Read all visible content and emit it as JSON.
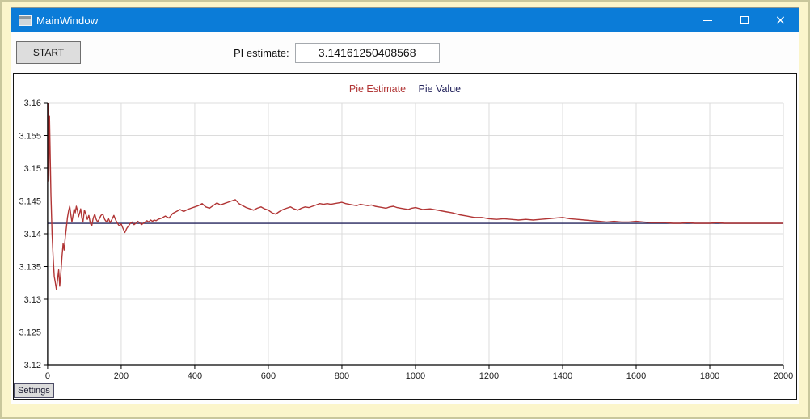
{
  "window": {
    "title": "MainWindow",
    "icons": {
      "app": "window-icon",
      "minimize": "–",
      "maximize": "□",
      "close": "×"
    }
  },
  "toolbar": {
    "start_label": "START",
    "pi_label": "PI estimate:",
    "pi_value": "3.14161250408568"
  },
  "settings_tab": {
    "label": "Settings"
  },
  "colors": {
    "titlebar": "#0b7cd8",
    "page_background": "#fbf5cb",
    "chart_border": "#141414",
    "gridline": "#dcdcdc",
    "axis": "#000000",
    "estimate_series": "#b13535",
    "value_series": "#23235c"
  },
  "chart_data": {
    "type": "line",
    "title": "",
    "legend_position": "top-center",
    "grid": true,
    "xlim": [
      0,
      2000
    ],
    "ylim": [
      3.12,
      3.16
    ],
    "x_ticks": [
      0,
      200,
      400,
      600,
      800,
      1000,
      1200,
      1400,
      1600,
      1800,
      2000
    ],
    "x_tick_labels": [
      "0",
      "200",
      "400",
      "600",
      "800",
      "1000",
      "1200",
      "1400",
      "1600",
      "1800",
      "2000"
    ],
    "y_ticks": [
      3.12,
      3.125,
      3.13,
      3.135,
      3.14,
      3.145,
      3.15,
      3.155,
      3.16
    ],
    "y_tick_labels": [
      "3.12",
      "3.125",
      "3.13",
      "3.135",
      "3.14",
      "3.145",
      "3.15",
      "3.155",
      "3.16"
    ],
    "series": [
      {
        "name": "Pie Estimate",
        "color": "#b13535",
        "points": [
          [
            1,
            3.16
          ],
          [
            3,
            3.148
          ],
          [
            5,
            3.158
          ],
          [
            7,
            3.152
          ],
          [
            9,
            3.146
          ],
          [
            12,
            3.14
          ],
          [
            15,
            3.1365
          ],
          [
            18,
            3.1335
          ],
          [
            21,
            3.1325
          ],
          [
            24,
            3.1315
          ],
          [
            27,
            3.133
          ],
          [
            30,
            3.1345
          ],
          [
            33,
            3.132
          ],
          [
            36,
            3.134
          ],
          [
            39,
            3.1365
          ],
          [
            42,
            3.1385
          ],
          [
            45,
            3.1375
          ],
          [
            48,
            3.1395
          ],
          [
            51,
            3.141
          ],
          [
            54,
            3.1425
          ],
          [
            57,
            3.1435
          ],
          [
            60,
            3.1442
          ],
          [
            63,
            3.143
          ],
          [
            66,
            3.1418
          ],
          [
            69,
            3.1428
          ],
          [
            72,
            3.1438
          ],
          [
            75,
            3.1432
          ],
          [
            78,
            3.1442
          ],
          [
            81,
            3.1436
          ],
          [
            84,
            3.1426
          ],
          [
            87,
            3.1432
          ],
          [
            90,
            3.1438
          ],
          [
            93,
            3.1424
          ],
          [
            96,
            3.1418
          ],
          [
            100,
            3.1436
          ],
          [
            104,
            3.143
          ],
          [
            108,
            3.1422
          ],
          [
            112,
            3.1428
          ],
          [
            116,
            3.1416
          ],
          [
            120,
            3.1412
          ],
          [
            124,
            3.1424
          ],
          [
            128,
            3.143
          ],
          [
            132,
            3.1422
          ],
          [
            136,
            3.1418
          ],
          [
            140,
            3.1422
          ],
          [
            145,
            3.1428
          ],
          [
            150,
            3.143
          ],
          [
            155,
            3.1422
          ],
          [
            160,
            3.1418
          ],
          [
            165,
            3.1424
          ],
          [
            170,
            3.1417
          ],
          [
            175,
            3.1422
          ],
          [
            180,
            3.1428
          ],
          [
            185,
            3.1421
          ],
          [
            190,
            3.1416
          ],
          [
            195,
            3.1412
          ],
          [
            200,
            3.1415
          ],
          [
            205,
            3.1408
          ],
          [
            210,
            3.1402
          ],
          [
            215,
            3.1408
          ],
          [
            220,
            3.1412
          ],
          [
            225,
            3.1416
          ],
          [
            230,
            3.1418
          ],
          [
            235,
            3.1414
          ],
          [
            240,
            3.1416
          ],
          [
            245,
            3.1419
          ],
          [
            250,
            3.1417
          ],
          [
            255,
            3.1414
          ],
          [
            260,
            3.1416
          ],
          [
            265,
            3.1418
          ],
          [
            270,
            3.142
          ],
          [
            275,
            3.1418
          ],
          [
            280,
            3.1421
          ],
          [
            285,
            3.1419
          ],
          [
            290,
            3.1421
          ],
          [
            295,
            3.142
          ],
          [
            300,
            3.1422
          ],
          [
            310,
            3.1424
          ],
          [
            320,
            3.1427
          ],
          [
            330,
            3.1424
          ],
          [
            340,
            3.1431
          ],
          [
            350,
            3.1434
          ],
          [
            360,
            3.1437
          ],
          [
            370,
            3.1434
          ],
          [
            380,
            3.1437
          ],
          [
            390,
            3.1439
          ],
          [
            400,
            3.1441
          ],
          [
            410,
            3.1443
          ],
          [
            420,
            3.1446
          ],
          [
            430,
            3.1441
          ],
          [
            440,
            3.1439
          ],
          [
            450,
            3.1443
          ],
          [
            460,
            3.1447
          ],
          [
            470,
            3.1444
          ],
          [
            480,
            3.1446
          ],
          [
            490,
            3.1448
          ],
          [
            500,
            3.145
          ],
          [
            510,
            3.1452
          ],
          [
            520,
            3.1446
          ],
          [
            530,
            3.1443
          ],
          [
            540,
            3.144
          ],
          [
            550,
            3.1438
          ],
          [
            560,
            3.1436
          ],
          [
            570,
            3.1439
          ],
          [
            580,
            3.1441
          ],
          [
            590,
            3.1438
          ],
          [
            600,
            3.1436
          ],
          [
            610,
            3.1432
          ],
          [
            620,
            3.143
          ],
          [
            630,
            3.1434
          ],
          [
            640,
            3.1437
          ],
          [
            650,
            3.1439
          ],
          [
            660,
            3.1441
          ],
          [
            670,
            3.1438
          ],
          [
            680,
            3.1436
          ],
          [
            690,
            3.1439
          ],
          [
            700,
            3.1441
          ],
          [
            710,
            3.144
          ],
          [
            720,
            3.1442
          ],
          [
            730,
            3.1444
          ],
          [
            740,
            3.1446
          ],
          [
            750,
            3.1445
          ],
          [
            760,
            3.1446
          ],
          [
            770,
            3.1445
          ],
          [
            780,
            3.1446
          ],
          [
            790,
            3.1447
          ],
          [
            800,
            3.1448
          ],
          [
            810,
            3.1446
          ],
          [
            820,
            3.1445
          ],
          [
            830,
            3.1444
          ],
          [
            840,
            3.1443
          ],
          [
            850,
            3.1445
          ],
          [
            860,
            3.1444
          ],
          [
            870,
            3.1443
          ],
          [
            880,
            3.1444
          ],
          [
            890,
            3.1442
          ],
          [
            900,
            3.1441
          ],
          [
            910,
            3.144
          ],
          [
            920,
            3.1439
          ],
          [
            930,
            3.1441
          ],
          [
            940,
            3.1442
          ],
          [
            950,
            3.144
          ],
          [
            960,
            3.1439
          ],
          [
            970,
            3.1438
          ],
          [
            980,
            3.1437
          ],
          [
            990,
            3.1439
          ],
          [
            1000,
            3.144
          ],
          [
            1020,
            3.1437
          ],
          [
            1040,
            3.1438
          ],
          [
            1060,
            3.1436
          ],
          [
            1080,
            3.1434
          ],
          [
            1100,
            3.1432
          ],
          [
            1120,
            3.1429
          ],
          [
            1140,
            3.1427
          ],
          [
            1160,
            3.1425
          ],
          [
            1180,
            3.1425
          ],
          [
            1200,
            3.1423
          ],
          [
            1220,
            3.1422
          ],
          [
            1240,
            3.1423
          ],
          [
            1260,
            3.1422
          ],
          [
            1280,
            3.1421
          ],
          [
            1300,
            3.1422
          ],
          [
            1320,
            3.1421
          ],
          [
            1340,
            3.1422
          ],
          [
            1360,
            3.1423
          ],
          [
            1380,
            3.1424
          ],
          [
            1400,
            3.1425
          ],
          [
            1420,
            3.1423
          ],
          [
            1440,
            3.1422
          ],
          [
            1460,
            3.1421
          ],
          [
            1480,
            3.142
          ],
          [
            1500,
            3.1419
          ],
          [
            1520,
            3.1418
          ],
          [
            1540,
            3.1419
          ],
          [
            1560,
            3.1418
          ],
          [
            1580,
            3.1418
          ],
          [
            1600,
            3.1419
          ],
          [
            1620,
            3.1418
          ],
          [
            1640,
            3.1417
          ],
          [
            1660,
            3.1417
          ],
          [
            1680,
            3.1417
          ],
          [
            1700,
            3.1416
          ],
          [
            1720,
            3.1416
          ],
          [
            1740,
            3.1417
          ],
          [
            1760,
            3.1416
          ],
          [
            1780,
            3.1416
          ],
          [
            1800,
            3.1416
          ],
          [
            1820,
            3.1417
          ],
          [
            1840,
            3.1416
          ],
          [
            1860,
            3.1416
          ],
          [
            1880,
            3.1416
          ],
          [
            1900,
            3.1416
          ],
          [
            1920,
            3.1416
          ],
          [
            1940,
            3.1416
          ],
          [
            1960,
            3.1416
          ],
          [
            1980,
            3.1416
          ],
          [
            2000,
            3.1416
          ]
        ]
      },
      {
        "name": "Pie Value",
        "color": "#23235c",
        "points": [
          [
            0,
            3.14159265
          ],
          [
            2000,
            3.14159265
          ]
        ]
      }
    ]
  }
}
